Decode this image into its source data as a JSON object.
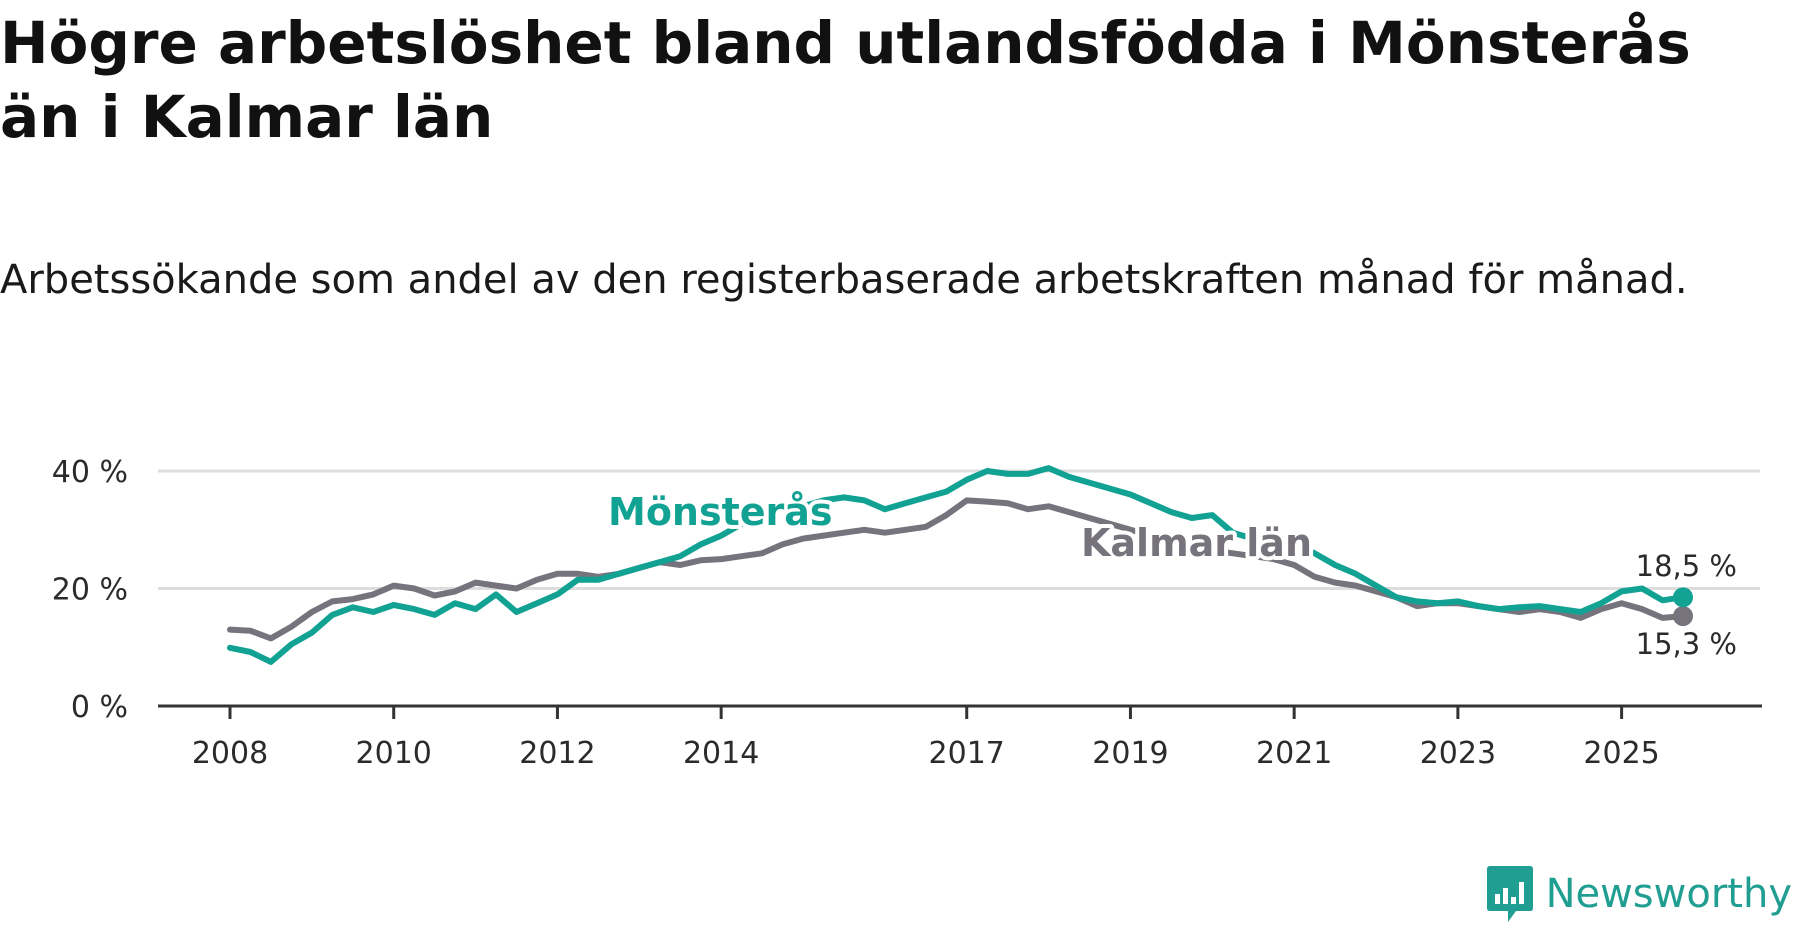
{
  "chart_data": {
    "type": "line",
    "title": "Högre arbetslöshet bland utlandsfödda i Mönsterås än i Kalmar län",
    "subtitle": "Arbetssökande som andel av den registerbaserade arbetskraften månad för månad.",
    "xlabel": "",
    "ylabel": "",
    "x_range": [
      2008,
      2025.75
    ],
    "ylim": [
      0,
      40
    ],
    "y_ticks": [
      0,
      20,
      40
    ],
    "y_tick_labels": [
      "0 %",
      "20 %",
      "40 %"
    ],
    "x_ticks": [
      2008,
      2010,
      2012,
      2014,
      2017,
      2019,
      2021,
      2023,
      2025
    ],
    "x_tick_labels": [
      "2008",
      "2010",
      "2012",
      "2014",
      "2017",
      "2019",
      "2021",
      "2023",
      "2025"
    ],
    "grid": true,
    "colors": {
      "monsteras": "#12a293",
      "kalmar": "#76737c",
      "grid": "#dddddd",
      "axis": "#333333"
    },
    "series": [
      {
        "name": "Mönsterås",
        "color": "#12a293",
        "last_label": "18,5 %",
        "x": [
          2008.0,
          2008.25,
          2008.5,
          2008.75,
          2009.0,
          2009.25,
          2009.5,
          2009.75,
          2010.0,
          2010.25,
          2010.5,
          2010.75,
          2011.0,
          2011.25,
          2011.5,
          2011.75,
          2012.0,
          2012.25,
          2012.5,
          2012.75,
          2013.0,
          2013.25,
          2013.5,
          2013.75,
          2014.0,
          2014.25,
          2014.5,
          2014.75,
          2015.0,
          2015.25,
          2015.5,
          2015.75,
          2016.0,
          2016.25,
          2016.5,
          2016.75,
          2017.0,
          2017.25,
          2017.5,
          2017.75,
          2018.0,
          2018.25,
          2018.5,
          2018.75,
          2019.0,
          2019.25,
          2019.5,
          2019.75,
          2020.0,
          2020.25,
          2020.5,
          2020.75,
          2021.0,
          2021.25,
          2021.5,
          2021.75,
          2022.0,
          2022.25,
          2022.5,
          2022.75,
          2023.0,
          2023.25,
          2023.5,
          2023.75,
          2024.0,
          2024.25,
          2024.5,
          2024.75,
          2025.0,
          2025.25,
          2025.5,
          2025.75
        ],
        "values": [
          9.9,
          9.2,
          7.5,
          10.5,
          12.5,
          15.5,
          16.8,
          16.0,
          17.2,
          16.5,
          15.5,
          17.5,
          16.5,
          19.0,
          16.0,
          17.5,
          19.0,
          21.5,
          21.5,
          22.5,
          23.5,
          24.5,
          25.5,
          27.5,
          29.0,
          31.0,
          33.0,
          34.5,
          34.0,
          35.0,
          35.5,
          35.0,
          33.5,
          34.5,
          35.5,
          36.5,
          38.5,
          40.0,
          39.5,
          39.5,
          40.5,
          39.0,
          38.0,
          37.0,
          36.0,
          34.5,
          33.0,
          32.0,
          32.5,
          29.5,
          28.5,
          29.0,
          27.5,
          26.0,
          24.0,
          22.5,
          20.5,
          18.5,
          17.8,
          17.5,
          17.8,
          17.0,
          16.5,
          16.8,
          17.0,
          16.5,
          16.0,
          17.5,
          19.5,
          20.0,
          18.0,
          18.5
        ]
      },
      {
        "name": "Kalmar län",
        "color": "#76737c",
        "last_label": "15,3 %",
        "x": [
          2008.0,
          2008.25,
          2008.5,
          2008.75,
          2009.0,
          2009.25,
          2009.5,
          2009.75,
          2010.0,
          2010.25,
          2010.5,
          2010.75,
          2011.0,
          2011.25,
          2011.5,
          2011.75,
          2012.0,
          2012.25,
          2012.5,
          2012.75,
          2013.0,
          2013.25,
          2013.5,
          2013.75,
          2014.0,
          2014.25,
          2014.5,
          2014.75,
          2015.0,
          2015.25,
          2015.5,
          2015.75,
          2016.0,
          2016.25,
          2016.5,
          2016.75,
          2017.0,
          2017.25,
          2017.5,
          2017.75,
          2018.0,
          2018.25,
          2018.5,
          2018.75,
          2019.0,
          2019.25,
          2019.5,
          2019.75,
          2020.0,
          2020.25,
          2020.5,
          2020.75,
          2021.0,
          2021.25,
          2021.5,
          2021.75,
          2022.0,
          2022.25,
          2022.5,
          2022.75,
          2023.0,
          2023.25,
          2023.5,
          2023.75,
          2024.0,
          2024.25,
          2024.5,
          2024.75,
          2025.0,
          2025.25,
          2025.5,
          2025.75
        ],
        "values": [
          13.0,
          12.8,
          11.5,
          13.5,
          16.0,
          17.8,
          18.2,
          19.0,
          20.5,
          20.0,
          18.8,
          19.5,
          21.0,
          20.5,
          20.0,
          21.5,
          22.5,
          22.5,
          22.0,
          22.5,
          23.5,
          24.5,
          24.0,
          24.8,
          25.0,
          25.5,
          26.0,
          27.5,
          28.5,
          29.0,
          29.5,
          30.0,
          29.5,
          30.0,
          30.5,
          32.5,
          35.0,
          34.8,
          34.5,
          33.5,
          34.0,
          33.0,
          32.0,
          31.0,
          30.0,
          29.0,
          28.0,
          27.5,
          26.5,
          26.0,
          25.5,
          25.0,
          24.0,
          22.0,
          21.0,
          20.5,
          19.5,
          18.5,
          17.0,
          17.5,
          17.5,
          17.0,
          16.5,
          16.0,
          16.5,
          16.0,
          15.0,
          16.5,
          17.5,
          16.5,
          15.0,
          15.3
        ]
      }
    ]
  },
  "brand": {
    "name": "Newsworthy",
    "logo_icon": "bar-chart-speech-bubble-icon"
  }
}
